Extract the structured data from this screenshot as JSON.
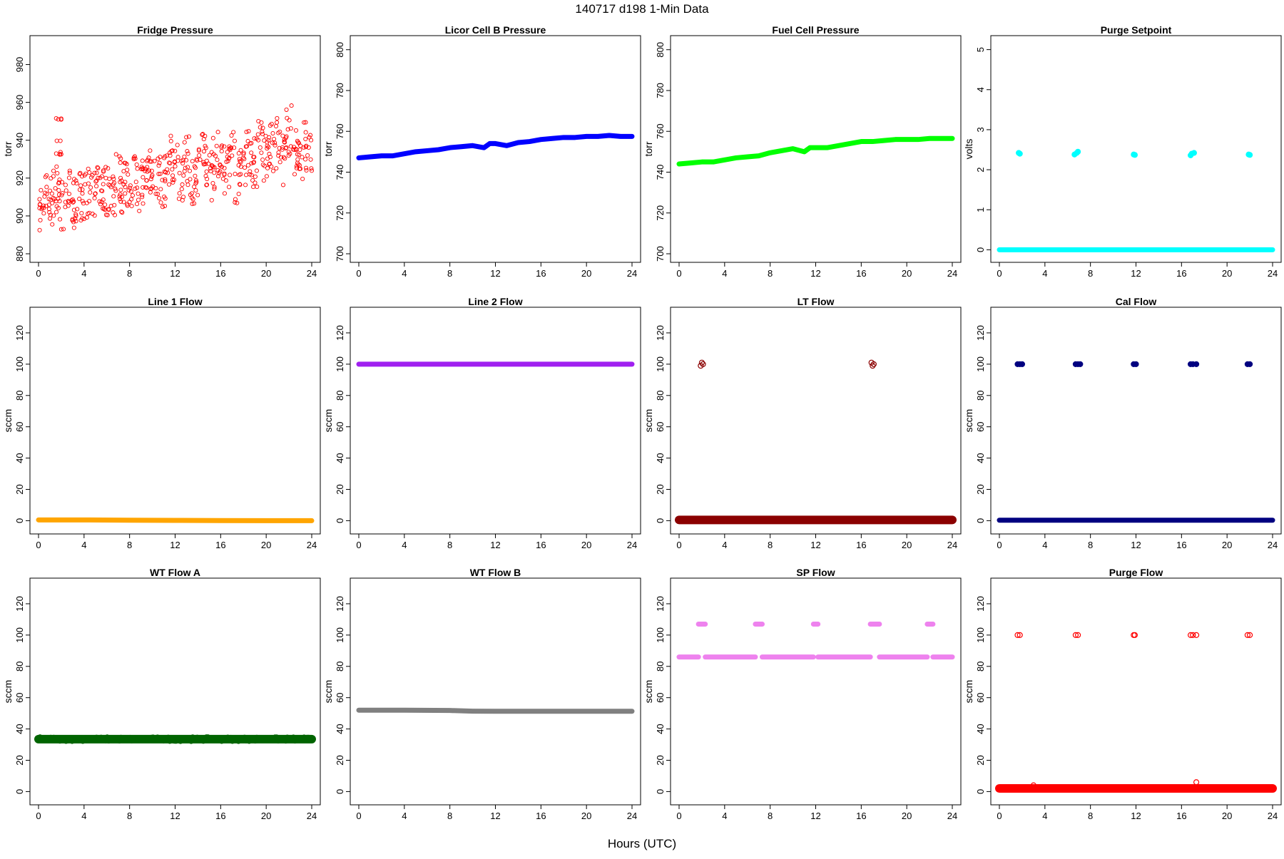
{
  "page": {
    "title": "140717   d198   1-Min Data",
    "xlabel": "Hours (UTC)"
  },
  "chart_data": [
    {
      "type": "scatter",
      "title": "Fridge Pressure",
      "ylabel": "torr",
      "ylim": [
        880,
        990
      ],
      "yticks": [
        880,
        900,
        920,
        940,
        960,
        980
      ],
      "xlim": [
        0,
        24
      ],
      "xticks": [
        0,
        4,
        8,
        12,
        16,
        20,
        24
      ],
      "color": "#ff0000",
      "marker": "open-circle",
      "grid": false,
      "series": [
        {
          "x": [
            0,
            0.5,
            1,
            1.5,
            1.8,
            2,
            2.5,
            3,
            3.5,
            4,
            4.5,
            5,
            5.5,
            6,
            6.5,
            7,
            7.5,
            8,
            8.5,
            9,
            9.5,
            10,
            10.5,
            11,
            11.5,
            12,
            12.5,
            13,
            13.5,
            14,
            14.5,
            15,
            15.5,
            16,
            16.5,
            17,
            17.5,
            18,
            18.5,
            19,
            19.5,
            20,
            20.5,
            21,
            21.5,
            22,
            22.5,
            23,
            23.5,
            24
          ],
          "y": [
            905,
            910,
            908,
            912,
            940,
            906,
            910,
            907,
            911,
            909,
            913,
            912,
            915,
            914,
            913,
            920,
            915,
            918,
            920,
            916,
            922,
            925,
            920,
            918,
            930,
            925,
            922,
            928,
            920,
            925,
            930,
            922,
            928,
            932,
            925,
            935,
            920,
            930,
            935,
            928,
            940,
            930,
            935,
            938,
            930,
            945,
            935,
            930,
            938,
            932
          ]
        }
      ],
      "spread": 14
    },
    {
      "type": "line",
      "title": "Licor Cell B Pressure",
      "ylabel": "torr",
      "ylim": [
        700,
        802
      ],
      "yticks": [
        700,
        720,
        740,
        760,
        780,
        800
      ],
      "xlim": [
        0,
        24
      ],
      "xticks": [
        0,
        4,
        8,
        12,
        16,
        20,
        24
      ],
      "color": "#0000ff",
      "marker": "filled-circle",
      "grid": false,
      "series": [
        {
          "x": [
            0,
            1,
            2,
            3,
            4,
            5,
            6,
            7,
            8,
            9,
            10,
            11,
            11.5,
            12,
            13,
            14,
            15,
            16,
            17,
            18,
            19,
            20,
            21,
            22,
            23,
            24
          ],
          "y": [
            747,
            747.5,
            748,
            748,
            749,
            750,
            750.5,
            751,
            752,
            752.5,
            753,
            752,
            754,
            754,
            753,
            754.5,
            755,
            756,
            756.5,
            757,
            757,
            757.5,
            757.5,
            758,
            757.5,
            757.5
          ]
        }
      ]
    },
    {
      "type": "line",
      "title": "Fuel Cell Pressure",
      "ylabel": "torr",
      "ylim": [
        700,
        802
      ],
      "yticks": [
        700,
        720,
        740,
        760,
        780,
        800
      ],
      "xlim": [
        0,
        24
      ],
      "xticks": [
        0,
        4,
        8,
        12,
        16,
        20,
        24
      ],
      "color": "#00ff00",
      "marker": "filled-circle",
      "grid": false,
      "series": [
        {
          "x": [
            0,
            1,
            2,
            3,
            4,
            5,
            6,
            7,
            8,
            9,
            10,
            11,
            11.5,
            12,
            13,
            14,
            15,
            16,
            17,
            18,
            19,
            20,
            21,
            22,
            23,
            24
          ],
          "y": [
            744,
            744.5,
            745,
            745,
            746,
            747,
            747.5,
            748,
            749.5,
            750.5,
            751.5,
            750,
            752,
            752,
            752,
            753,
            754,
            755,
            755,
            755.5,
            756,
            756,
            756,
            756.5,
            756.5,
            756.5
          ]
        }
      ]
    },
    {
      "type": "scatter",
      "title": "Purge Setpoint",
      "ylabel": "volts",
      "ylim": [
        -0.1,
        5.1
      ],
      "yticks": [
        0,
        1,
        2,
        3,
        4,
        5
      ],
      "xlim": [
        0,
        24
      ],
      "xticks": [
        0,
        4,
        8,
        12,
        16,
        20,
        24
      ],
      "color": "#00ffff",
      "marker": "filled-circle",
      "grid": false,
      "baseline": {
        "y": 0,
        "x": [
          0,
          24
        ]
      },
      "series": [
        {
          "x": [
            1.7,
            1.8,
            6.6,
            6.8,
            6.9,
            11.8,
            11.9,
            16.8,
            16.9,
            17.1,
            21.9,
            22
          ],
          "y": [
            2.42,
            2.4,
            2.38,
            2.42,
            2.45,
            2.38,
            2.37,
            2.36,
            2.4,
            2.42,
            2.38,
            2.37
          ]
        }
      ]
    },
    {
      "type": "line",
      "title": "Line 1 Flow",
      "ylabel": "sccm",
      "ylim": [
        -3,
        130
      ],
      "yticks": [
        0,
        20,
        40,
        60,
        80,
        100,
        120
      ],
      "xlim": [
        0,
        24
      ],
      "xticks": [
        0,
        4,
        8,
        12,
        16,
        20,
        24
      ],
      "color": "#ffa500",
      "marker": "filled-circle",
      "grid": false,
      "series": [
        {
          "x": [
            0,
            4,
            8,
            12,
            16,
            20,
            24
          ],
          "y": [
            0.5,
            0.5,
            0.3,
            0.2,
            0.1,
            0,
            0
          ]
        }
      ]
    },
    {
      "type": "line",
      "title": "Line 2 Flow",
      "ylabel": "sccm",
      "ylim": [
        -3,
        130
      ],
      "yticks": [
        0,
        20,
        40,
        60,
        80,
        100,
        120
      ],
      "xlim": [
        0,
        24
      ],
      "xticks": [
        0,
        4,
        8,
        12,
        16,
        20,
        24
      ],
      "color": "#a020f0",
      "marker": "filled-circle",
      "grid": false,
      "series": [
        {
          "x": [
            0,
            24
          ],
          "y": [
            100,
            100
          ]
        }
      ]
    },
    {
      "type": "scatter",
      "title": "LT Flow",
      "ylabel": "sccm",
      "ylim": [
        -3,
        130
      ],
      "yticks": [
        0,
        20,
        40,
        60,
        80,
        100,
        120
      ],
      "xlim": [
        0,
        24
      ],
      "xticks": [
        0,
        4,
        8,
        12,
        16,
        20,
        24
      ],
      "color": "#8b0000",
      "marker": "open-circle",
      "grid": false,
      "baseline": {
        "y": 0.5,
        "x": [
          0,
          24
        ],
        "thick": true
      },
      "series": [
        {
          "x": [
            1.9,
            2,
            2.1,
            16.9,
            17,
            17.1
          ],
          "y": [
            99,
            101,
            100,
            101,
            99,
            100
          ]
        }
      ]
    },
    {
      "type": "scatter",
      "title": "Cal Flow",
      "ylabel": "sccm",
      "ylim": [
        -3,
        130
      ],
      "yticks": [
        0,
        20,
        40,
        60,
        80,
        100,
        120
      ],
      "xlim": [
        0,
        24
      ],
      "xticks": [
        0,
        4,
        8,
        12,
        16,
        20,
        24
      ],
      "color": "#000080",
      "marker": "filled-circle",
      "grid": false,
      "baseline": {
        "y": 0.3,
        "x": [
          0,
          24
        ]
      },
      "series": [
        {
          "x": [
            1.6,
            1.8,
            2,
            6.7,
            6.9,
            7.1,
            11.8,
            12,
            16.8,
            17,
            17.3,
            21.8,
            22
          ],
          "y": [
            100,
            100,
            100,
            100,
            100,
            100,
            100,
            100,
            100,
            100,
            100,
            100,
            100
          ]
        }
      ]
    },
    {
      "type": "line",
      "title": "WT Flow A",
      "ylabel": "sccm",
      "ylim": [
        -3,
        130
      ],
      "yticks": [
        0,
        20,
        40,
        60,
        80,
        100,
        120
      ],
      "xlim": [
        0,
        24
      ],
      "xticks": [
        0,
        4,
        8,
        12,
        16,
        20,
        24
      ],
      "color": "#006400",
      "marker": "open-circle",
      "grid": false,
      "series": [
        {
          "x": [
            0,
            24
          ],
          "y": [
            33.5,
            33.5
          ]
        }
      ],
      "band": 3
    },
    {
      "type": "line",
      "title": "WT Flow B",
      "ylabel": "sccm",
      "ylim": [
        -3,
        130
      ],
      "yticks": [
        0,
        20,
        40,
        60,
        80,
        100,
        120
      ],
      "xlim": [
        0,
        24
      ],
      "xticks": [
        0,
        4,
        8,
        12,
        16,
        20,
        24
      ],
      "color": "#808080",
      "marker": "filled-circle",
      "grid": false,
      "series": [
        {
          "x": [
            0,
            4,
            8,
            10,
            12,
            16,
            20,
            24
          ],
          "y": [
            52,
            52,
            51.8,
            51.4,
            51.3,
            51.3,
            51.3,
            51.3
          ]
        }
      ]
    },
    {
      "type": "scatter",
      "title": "SP Flow",
      "ylabel": "sccm",
      "ylim": [
        -3,
        130
      ],
      "yticks": [
        0,
        20,
        40,
        60,
        80,
        100,
        120
      ],
      "xlim": [
        0,
        24
      ],
      "xticks": [
        0,
        4,
        8,
        12,
        16,
        20,
        24
      ],
      "color": "#ee82ee",
      "marker": "filled-circle",
      "grid": false,
      "segments": [
        {
          "y": 86,
          "x": [
            0,
            1.7
          ]
        },
        {
          "y": 86,
          "x": [
            2.3,
            6.7
          ]
        },
        {
          "y": 86,
          "x": [
            7.3,
            11.8
          ]
        },
        {
          "y": 86,
          "x": [
            12.2,
            16.8
          ]
        },
        {
          "y": 86,
          "x": [
            17.6,
            21.8
          ]
        },
        {
          "y": 86,
          "x": [
            22.3,
            24
          ]
        },
        {
          "y": 107,
          "x": [
            1.7,
            2.3
          ]
        },
        {
          "y": 107,
          "x": [
            6.7,
            7.3
          ]
        },
        {
          "y": 107,
          "x": [
            11.8,
            12.2
          ]
        },
        {
          "y": 107,
          "x": [
            16.8,
            17.6
          ]
        },
        {
          "y": 107,
          "x": [
            21.8,
            22.3
          ]
        }
      ],
      "series": []
    },
    {
      "type": "scatter",
      "title": "Purge Flow",
      "ylabel": "sccm",
      "ylim": [
        -3,
        130
      ],
      "yticks": [
        0,
        20,
        40,
        60,
        80,
        100,
        120
      ],
      "xlim": [
        0,
        24
      ],
      "xticks": [
        0,
        4,
        8,
        12,
        16,
        20,
        24
      ],
      "color": "#ff0000",
      "marker": "open-circle",
      "grid": false,
      "baseline": {
        "y": 2,
        "x": [
          0,
          24
        ],
        "thick": true
      },
      "series": [
        {
          "x": [
            1.6,
            1.8,
            6.7,
            6.9,
            11.8,
            11.9,
            16.8,
            17,
            17.3,
            21.8,
            22,
            3,
            17.3
          ],
          "y": [
            100,
            100,
            100,
            100,
            100,
            100,
            100,
            100,
            100,
            100,
            100,
            4,
            6
          ]
        }
      ]
    }
  ]
}
